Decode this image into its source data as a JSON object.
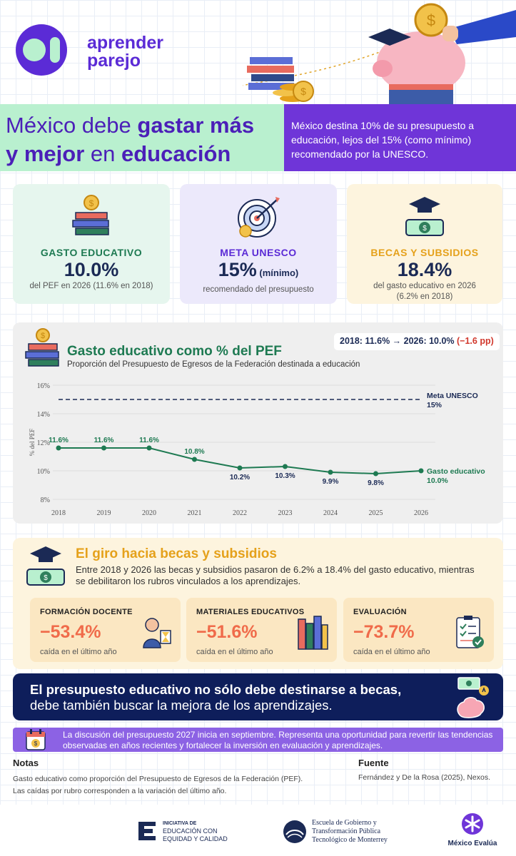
{
  "brand": {
    "logo_line1": "aprender",
    "logo_line2": "parejo"
  },
  "headline": {
    "part1": "México debe ",
    "bold1": "gastar más",
    "part2_bold": "y mejor",
    "part2": " en ",
    "bold2": "educación",
    "summary": "México destina 10% de su presupuesto a educación, lejos del 15% (como mínimo) recomendado por la UNESCO."
  },
  "stats": [
    {
      "label": "GASTO EDUCATIVO",
      "value": "10.0%",
      "value_suffix": "",
      "sub": "del PEF en 2026 (11.6% en 2018)",
      "color": "#1e7a52",
      "icon": "books-coin-icon"
    },
    {
      "label": "META UNESCO",
      "value": "15%",
      "value_suffix": " (mínimo)",
      "sub": "recomendado del presupuesto",
      "color": "#5b2bd6",
      "icon": "target-icon"
    },
    {
      "label": "BECAS Y SUBSIDIOS",
      "value": "18.4%",
      "value_suffix": "",
      "sub": "del gasto educativo en 2026 (6.2% en 2018)",
      "color": "#e5a11b",
      "icon": "grad-cap-money-icon"
    }
  ],
  "chart_section": {
    "title": "Gasto educativo como % del PEF",
    "subtitle": "Proporción del Presupuesto de Egresos de la Federación destinada a educación",
    "pill": "2018: 11.6% → 2026: 10.0% ",
    "pill_delta": "(−1.6 pp)"
  },
  "chart_data": {
    "type": "line",
    "ylabel": "% del PEF",
    "ylim": [
      8,
      16
    ],
    "yticks": [
      "8%",
      "10%",
      "12%",
      "14%",
      "16%"
    ],
    "x": [
      "2018",
      "2019",
      "2020",
      "2021",
      "2022",
      "2023",
      "2024",
      "2025",
      "2026"
    ],
    "series": [
      {
        "name": "Gasto educativo",
        "values": [
          11.6,
          11.6,
          11.6,
          10.8,
          10.2,
          10.3,
          9.9,
          9.8,
          10.0
        ],
        "labels": [
          "11.6%",
          "11.6%",
          "11.6%",
          "10.8%",
          "10.2%",
          "10.3%",
          "9.9%",
          "9.8%",
          "10.0%"
        ],
        "color": "#1e7a52"
      }
    ],
    "reference": {
      "name": "Meta UNESCO",
      "value": 15,
      "label": "15%",
      "color": "#1b2a55"
    },
    "grid": true
  },
  "becas": {
    "title": "El giro hacia becas y subsidios",
    "text": "Entre 2018 y 2026 las becas y subsidios pasaron de 6.2% a 18.4% del gasto educativo, mientras se debilitaron los rubros vinculados a los aprendizajes.",
    "items": [
      {
        "label": "FORMACIÓN DOCENTE",
        "value": "−53.4%",
        "foot": "caída en el último año",
        "icon": "teacher-icon"
      },
      {
        "label": "MATERIALES EDUCATIVOS",
        "value": "−51.6%",
        "foot": "caída en el último año",
        "icon": "books-icon"
      },
      {
        "label": "EVALUACIÓN",
        "value": "−73.7%",
        "foot": "caída en el último año",
        "icon": "checklist-icon"
      }
    ]
  },
  "banner": {
    "line1": "El presupuesto educativo no sólo debe destinarse a becas,",
    "line2": "debe también buscar la mejora de los aprendizajes."
  },
  "note_bar": "La discusión del presupuesto 2027 inicia en septiembre. Representa una oportunidad para revertir las tendencias observadas en años recientes y fortalecer la inversión en evaluación y aprendizajes.",
  "notes": {
    "heading": "Notas",
    "line1": "Gasto educativo como proporción del Presupuesto de Egresos de la Federación (PEF).",
    "line2": "Las caídas por rubro corresponden a la variación del último año.",
    "source_heading": "Fuente",
    "source": "Fernández y De la Rosa (2025), Nexos."
  },
  "footer": {
    "org1_small": "INICIATIVA DE",
    "org1_a": "EDUCACIÓN CON",
    "org1_b": "EQUIDAD Y CALIDAD",
    "org2_a": "Escuela de Gobierno y",
    "org2_b": "Transformación Pública",
    "org2_c": "Tecnológico de Monterrey",
    "org3": "México Evalúa"
  },
  "colors": {
    "purple": "#5b2bd6",
    "green": "#1e7a52",
    "navy": "#1b2a55",
    "orange": "#f06b4a",
    "gold": "#e5a11b"
  }
}
